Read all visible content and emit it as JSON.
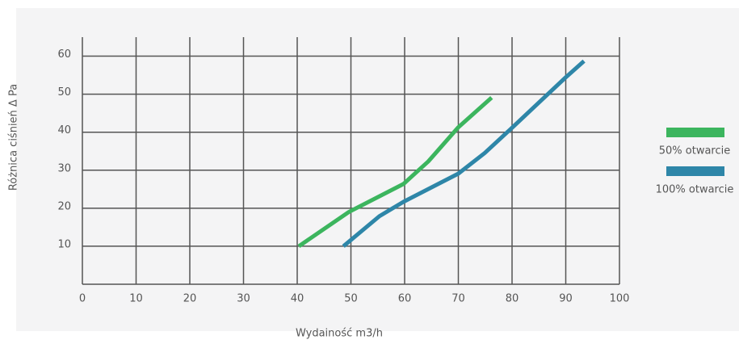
{
  "chart_data": {
    "type": "line",
    "x_label": "Wydainość m3/h",
    "y_label": "Różnica ciśnień Δ Pa",
    "xlim": [
      0,
      100
    ],
    "xticks": [
      0,
      10,
      20,
      30,
      40,
      50,
      60,
      70,
      80,
      90,
      100
    ],
    "ylim": [
      0,
      65
    ],
    "yticks": [
      10,
      20,
      30,
      40,
      50,
      60
    ],
    "grid": true,
    "legend": "right",
    "series": [
      {
        "name": "50% otwarcie",
        "color": "#3cb55e",
        "x": [
          40.3,
          49.6,
          59.8,
          64.4,
          70,
          76.2
        ],
        "values": [
          10,
          19,
          26.4,
          32.3,
          41.3,
          49.1
        ]
      },
      {
        "name": "100% otwarcie",
        "color": "#2e86a8",
        "x": [
          48.6,
          55.3,
          59.8,
          70,
          74.9,
          79.8,
          89.9,
          93.4
        ],
        "values": [
          10,
          17.9,
          21.7,
          29.1,
          34.5,
          40.9,
          54.3,
          58.7
        ]
      }
    ]
  }
}
